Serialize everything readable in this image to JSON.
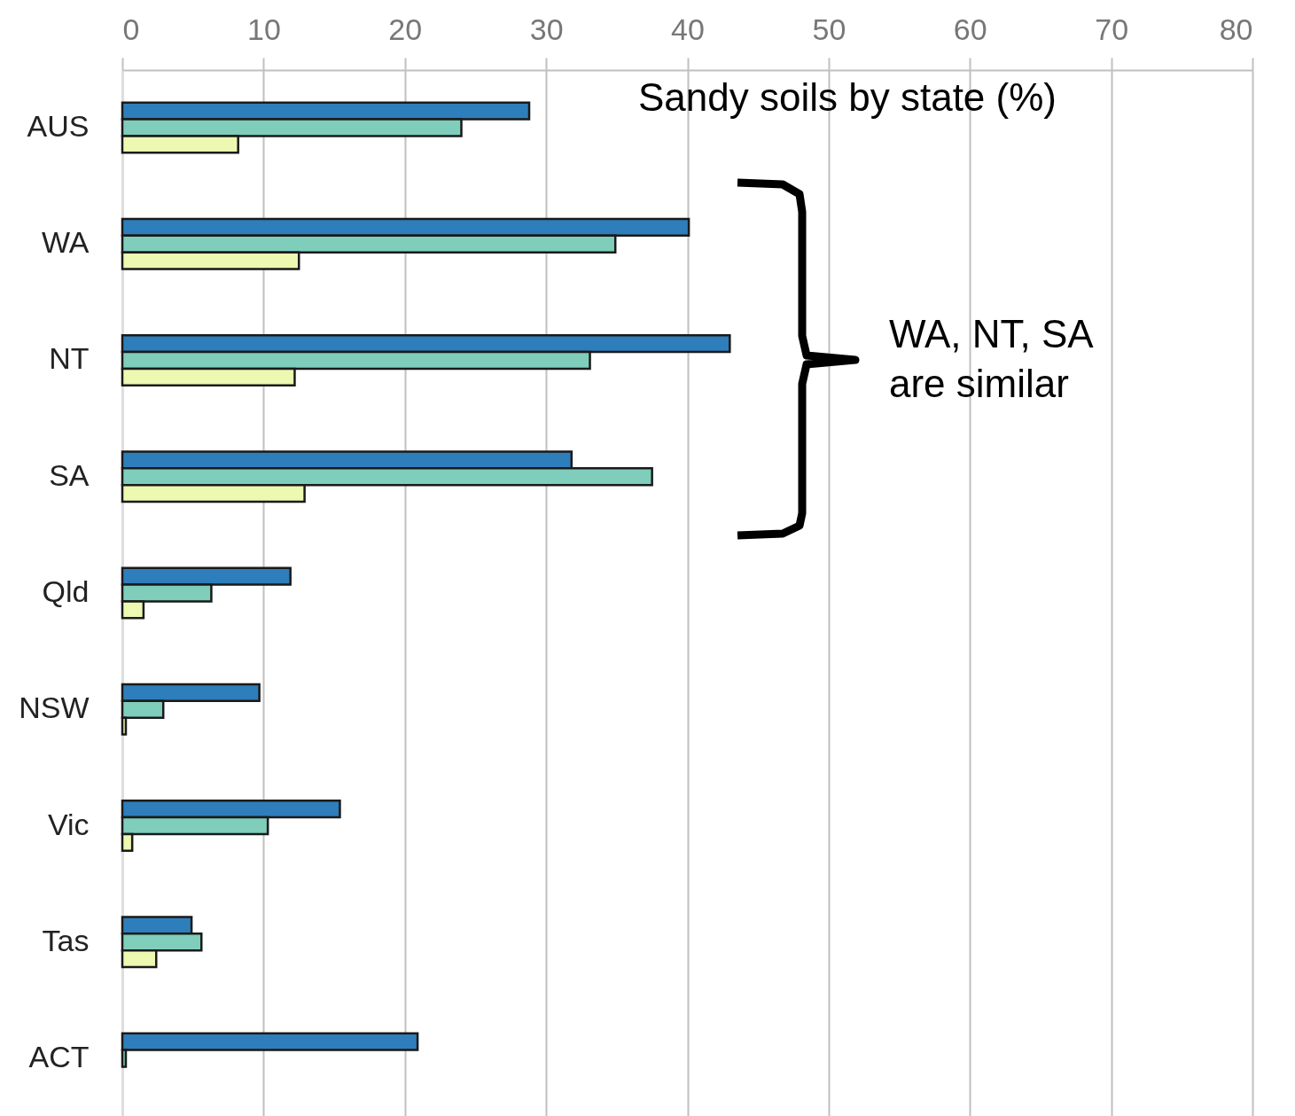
{
  "chart_data": {
    "type": "bar",
    "orientation": "horizontal",
    "title": "Sandy soils by state (%)",
    "categories": [
      "AUS",
      "WA",
      "NT",
      "SA",
      "Qld",
      "NSW",
      "Vic",
      "Tas",
      "ACT"
    ],
    "series": [
      {
        "color": "#2e7ebb",
        "values": [
          28.8,
          40.1,
          43.0,
          31.8,
          11.9,
          9.7,
          15.4,
          4.9,
          20.9
        ]
      },
      {
        "color": "#7fcdbb",
        "values": [
          24.0,
          34.9,
          33.1,
          37.5,
          6.3,
          2.9,
          10.3,
          5.6,
          0.25
        ]
      },
      {
        "color": "#edf8b1",
        "values": [
          8.2,
          12.5,
          12.2,
          12.9,
          1.5,
          0.25,
          0.7,
          2.4,
          null
        ]
      }
    ],
    "xlim": [
      0,
      80
    ],
    "xticks": [
      0,
      10,
      20,
      30,
      40,
      50,
      60,
      70,
      80
    ],
    "grid": "x",
    "legend": false,
    "annotations": [
      "WA, NT, SA\nare similar"
    ]
  }
}
